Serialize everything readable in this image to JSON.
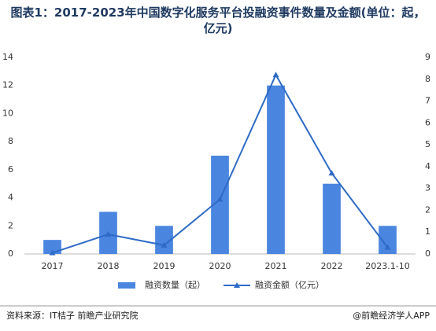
{
  "chart_data": {
    "type": "bar-line",
    "title": "图表1：2017-2023年中国数字化服务平台投融资事件数量及金额(单位：起，亿元)",
    "categories": [
      "2017",
      "2018",
      "2019",
      "2020",
      "2021",
      "2022",
      "2023.1-10"
    ],
    "series": [
      {
        "name": "融资数量（起）",
        "type": "bar",
        "color": "#4a86e0",
        "values": [
          1,
          3,
          2,
          7,
          12,
          5,
          2
        ]
      },
      {
        "name": "融资金额（亿元）",
        "type": "line",
        "axis": "y2",
        "color": "#2e6bc6",
        "values": [
          0.05,
          0.9,
          0.4,
          2.5,
          8.2,
          3.7,
          0.3
        ]
      }
    ],
    "ylim": [
      0,
      14
    ],
    "yticks": [
      0,
      2,
      4,
      6,
      8,
      10,
      12,
      14
    ],
    "y2lim": [
      0,
      9
    ],
    "y2ticks": [
      0,
      1,
      2,
      3,
      4,
      5,
      6,
      7,
      8,
      9
    ],
    "legend": "bottom",
    "source": "资料来源：IT桔子 前瞻产业研究院",
    "credit": "@前瞻经济学人APP"
  }
}
